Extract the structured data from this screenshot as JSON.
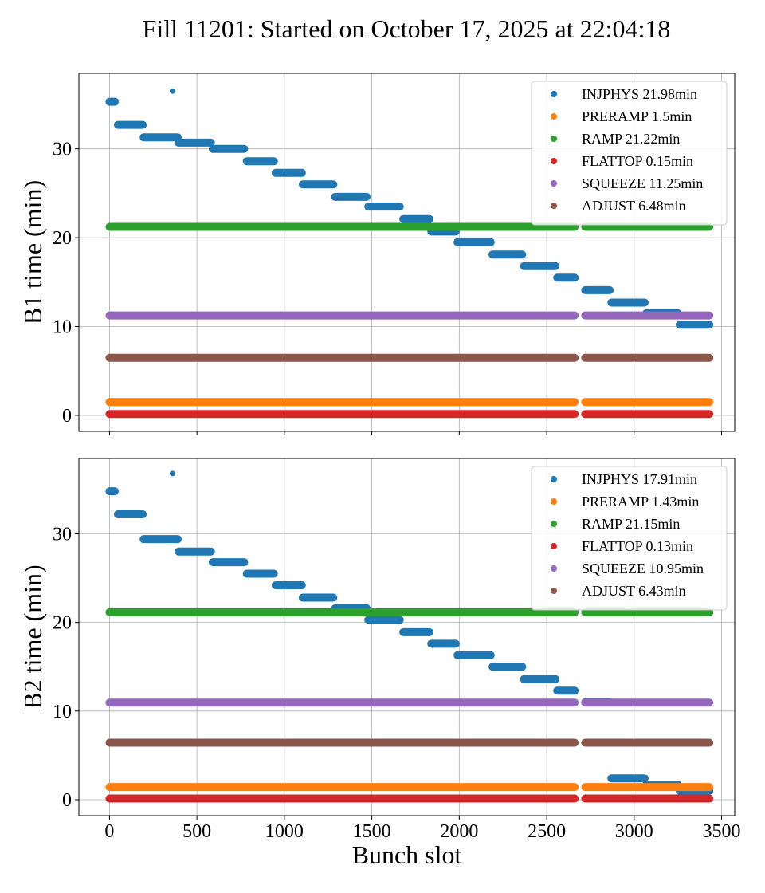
{
  "title": "Fill 11201: Started on October 17, 2025 at 22:04:18",
  "xlabel": "Bunch slot",
  "colors": {
    "INJPHYS": "#1f77b4",
    "PRERAMP": "#ff7f0e",
    "RAMP": "#2ca02c",
    "FLATTOP": "#d62728",
    "SQUEEZE": "#9467bd",
    "ADJUST": "#8c564b"
  },
  "chart_data": [
    {
      "type": "scatter",
      "ylabel": "B1 time (min)",
      "xlim": [
        -175,
        3575
      ],
      "ylim": [
        -1.8,
        38.5
      ],
      "xticks": [
        0,
        500,
        1000,
        1500,
        2000,
        2500,
        3000,
        3500
      ],
      "yticks": [
        0,
        10,
        20,
        30
      ],
      "grid": true,
      "legend_position": "top-right",
      "x_range_segments": [
        [
          0,
          2660
        ],
        [
          2720,
          3430
        ]
      ],
      "series": [
        {
          "name": "INJPHYS 21.98min",
          "key": "INJPHYS",
          "segments": [
            {
              "x": [
                0,
                30
              ],
              "y": 35.3
            },
            {
              "x": [
                48,
                190
              ],
              "y": 32.7
            },
            {
              "x": [
                195,
                390
              ],
              "y": 31.3
            },
            {
              "x": [
                395,
                580
              ],
              "y": 30.7
            },
            {
              "x": [
                590,
                770
              ],
              "y": 30.0
            },
            {
              "x": [
                785,
                940
              ],
              "y": 28.6
            },
            {
              "x": [
                950,
                1100
              ],
              "y": 27.3
            },
            {
              "x": [
                1105,
                1280
              ],
              "y": 26.0
            },
            {
              "x": [
                1290,
                1470
              ],
              "y": 24.6
            },
            {
              "x": [
                1480,
                1660
              ],
              "y": 23.5
            },
            {
              "x": [
                1680,
                1830
              ],
              "y": 22.1
            },
            {
              "x": [
                1840,
                1980
              ],
              "y": 20.7
            },
            {
              "x": [
                1990,
                2180
              ],
              "y": 19.5
            },
            {
              "x": [
                2190,
                2360
              ],
              "y": 18.1
            },
            {
              "x": [
                2370,
                2550
              ],
              "y": 16.8
            },
            {
              "x": [
                2560,
                2660
              ],
              "y": 15.5
            },
            {
              "x": [
                2720,
                2860
              ],
              "y": 14.1
            },
            {
              "x": [
                2870,
                3060
              ],
              "y": 12.7
            },
            {
              "x": [
                3070,
                3250
              ],
              "y": 11.5
            },
            {
              "x": [
                3260,
                3430
              ],
              "y": 10.2
            }
          ],
          "points": [
            [
              360,
              36.5
            ]
          ]
        },
        {
          "name": "PRERAMP 1.5min",
          "key": "PRERAMP",
          "flat_y": 1.5
        },
        {
          "name": "RAMP 21.22min",
          "key": "RAMP",
          "flat_y": 21.22
        },
        {
          "name": "FLATTOP 0.15min",
          "key": "FLATTOP",
          "flat_y": 0.15
        },
        {
          "name": "SQUEEZE 11.25min",
          "key": "SQUEEZE",
          "flat_y": 11.25
        },
        {
          "name": "ADJUST 6.48min",
          "key": "ADJUST",
          "flat_y": 6.48
        }
      ]
    },
    {
      "type": "scatter",
      "ylabel": "B2 time (min)",
      "xlim": [
        -175,
        3575
      ],
      "ylim": [
        -1.8,
        38.5
      ],
      "xticks": [
        0,
        500,
        1000,
        1500,
        2000,
        2500,
        3000,
        3500
      ],
      "yticks": [
        0,
        10,
        20,
        30
      ],
      "grid": true,
      "legend_position": "top-right",
      "x_range_segments": [
        [
          0,
          2660
        ],
        [
          2720,
          3430
        ]
      ],
      "series": [
        {
          "name": "INJPHYS 17.91min",
          "key": "INJPHYS",
          "segments": [
            {
              "x": [
                0,
                30
              ],
              "y": 34.8
            },
            {
              "x": [
                48,
                190
              ],
              "y": 32.2
            },
            {
              "x": [
                195,
                390
              ],
              "y": 29.4
            },
            {
              "x": [
                395,
                580
              ],
              "y": 28.0
            },
            {
              "x": [
                590,
                770
              ],
              "y": 26.8
            },
            {
              "x": [
                785,
                940
              ],
              "y": 25.5
            },
            {
              "x": [
                950,
                1100
              ],
              "y": 24.2
            },
            {
              "x": [
                1105,
                1280
              ],
              "y": 22.8
            },
            {
              "x": [
                1290,
                1470
              ],
              "y": 21.6
            },
            {
              "x": [
                1480,
                1660
              ],
              "y": 20.3
            },
            {
              "x": [
                1680,
                1830
              ],
              "y": 18.9
            },
            {
              "x": [
                1840,
                1980
              ],
              "y": 17.6
            },
            {
              "x": [
                1990,
                2180
              ],
              "y": 16.3
            },
            {
              "x": [
                2190,
                2360
              ],
              "y": 15.0
            },
            {
              "x": [
                2370,
                2550
              ],
              "y": 13.6
            },
            {
              "x": [
                2560,
                2660
              ],
              "y": 12.3
            },
            {
              "x": [
                2720,
                2860
              ],
              "y": 11.0
            },
            {
              "x": [
                2870,
                3060
              ],
              "y": 2.4
            },
            {
              "x": [
                3070,
                3250
              ],
              "y": 1.7
            },
            {
              "x": [
                3260,
                3430
              ],
              "y": 1.0
            }
          ],
          "points": [
            [
              360,
              36.8
            ]
          ]
        },
        {
          "name": "PRERAMP 1.43min",
          "key": "PRERAMP",
          "flat_y": 1.43
        },
        {
          "name": "RAMP 21.15min",
          "key": "RAMP",
          "flat_y": 21.15
        },
        {
          "name": "FLATTOP 0.13min",
          "key": "FLATTOP",
          "flat_y": 0.13
        },
        {
          "name": "SQUEEZE 10.95min",
          "key": "SQUEEZE",
          "flat_y": 10.95
        },
        {
          "name": "ADJUST 6.43min",
          "key": "ADJUST",
          "flat_y": 6.43
        }
      ]
    }
  ]
}
